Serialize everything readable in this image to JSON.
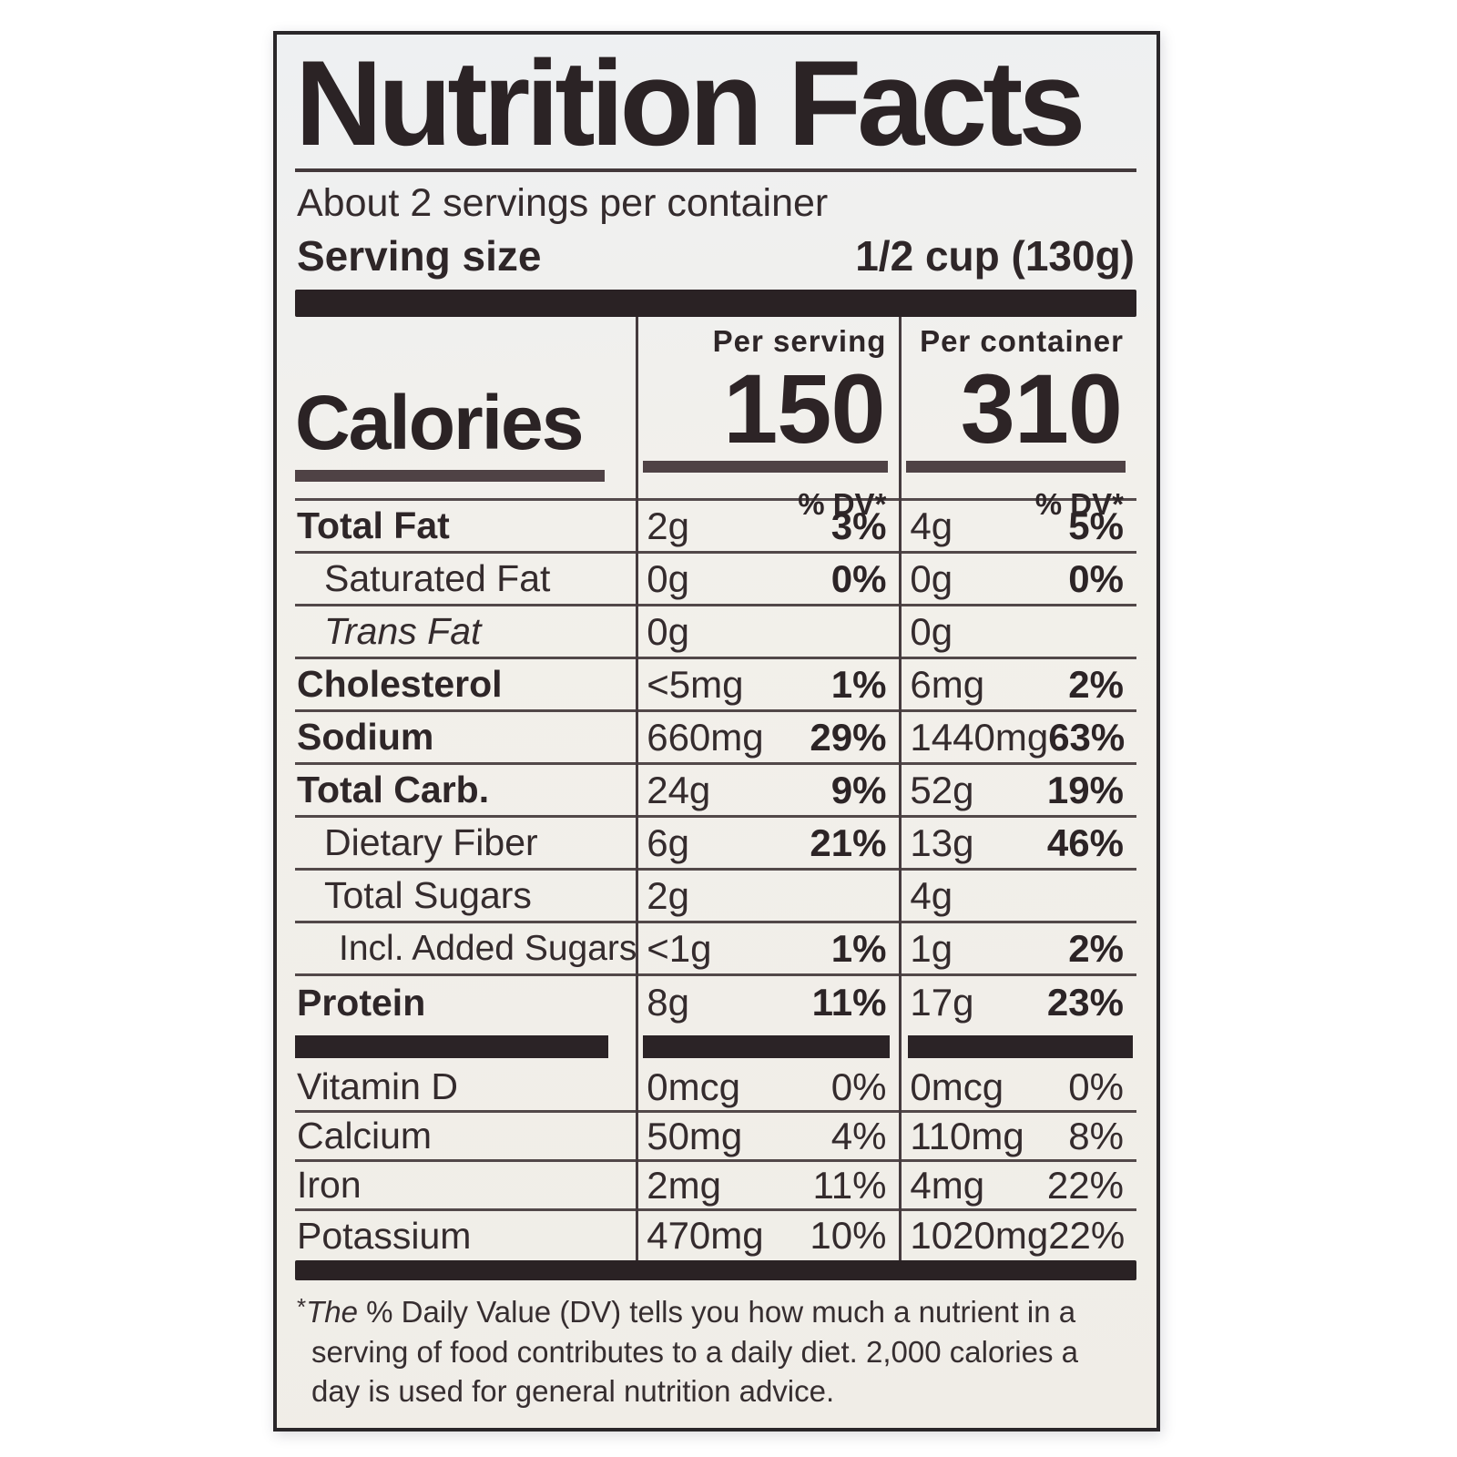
{
  "label": {
    "title": "Nutrition Facts",
    "servings_per_container": "About 2 servings per container",
    "serving_size_label": "Serving size",
    "serving_size_value": "1/2 cup (130g)",
    "calories": {
      "word": "Calories",
      "per_serving_header": "Per serving",
      "per_container_header": "Per container",
      "per_serving_value": "150",
      "per_container_value": "310",
      "dv_header_serving": "% DV*",
      "dv_header_container": "% DV*"
    },
    "nutrients": [
      {
        "name": "Total Fat",
        "per_serving": {
          "amount": "2g",
          "dv": "3%"
        },
        "per_container": {
          "amount": "4g",
          "dv": "5%"
        }
      },
      {
        "name": "Saturated Fat",
        "per_serving": {
          "amount": "0g",
          "dv": "0%"
        },
        "per_container": {
          "amount": "0g",
          "dv": "0%"
        }
      },
      {
        "name": "Trans Fat",
        "per_serving": {
          "amount": "0g",
          "dv": ""
        },
        "per_container": {
          "amount": "0g",
          "dv": ""
        }
      },
      {
        "name": "Cholesterol",
        "per_serving": {
          "amount": "<5mg",
          "dv": "1%"
        },
        "per_container": {
          "amount": "6mg",
          "dv": "2%"
        }
      },
      {
        "name": "Sodium",
        "per_serving": {
          "amount": "660mg",
          "dv": "29%"
        },
        "per_container": {
          "amount": "1440mg",
          "dv": "63%"
        }
      },
      {
        "name": "Total Carb.",
        "per_serving": {
          "amount": "24g",
          "dv": "9%"
        },
        "per_container": {
          "amount": "52g",
          "dv": "19%"
        }
      },
      {
        "name": "Dietary Fiber",
        "per_serving": {
          "amount": "6g",
          "dv": "21%"
        },
        "per_container": {
          "amount": "13g",
          "dv": "46%"
        }
      },
      {
        "name": "Total Sugars",
        "per_serving": {
          "amount": "2g",
          "dv": ""
        },
        "per_container": {
          "amount": "4g",
          "dv": ""
        }
      },
      {
        "name": "Incl. Added Sugars",
        "per_serving": {
          "amount": "<1g",
          "dv": "1%"
        },
        "per_container": {
          "amount": "1g",
          "dv": "2%"
        }
      },
      {
        "name": "Protein",
        "per_serving": {
          "amount": "8g",
          "dv": "11%"
        },
        "per_container": {
          "amount": "17g",
          "dv": "23%"
        }
      }
    ],
    "micronutrients": [
      {
        "name": "Vitamin D",
        "per_serving": {
          "amount": "0mcg",
          "dv": "0%"
        },
        "per_container": {
          "amount": "0mcg",
          "dv": "0%"
        }
      },
      {
        "name": "Calcium",
        "per_serving": {
          "amount": "50mg",
          "dv": "4%"
        },
        "per_container": {
          "amount": "110mg",
          "dv": "8%"
        }
      },
      {
        "name": "Iron",
        "per_serving": {
          "amount": "2mg",
          "dv": "11%"
        },
        "per_container": {
          "amount": "4mg",
          "dv": "22%"
        }
      },
      {
        "name": "Potassium",
        "per_serving": {
          "amount": "470mg",
          "dv": "10%"
        },
        "per_container": {
          "amount": "1020mg",
          "dv": "22%"
        }
      }
    ],
    "footnote": {
      "marker": "*",
      "lead_italic": "The",
      "body": " % Daily Value (DV) tells you how much a nutrient in a serving of food contributes to a daily diet. 2,000 calories a day is used for general nutrition advice."
    },
    "colors": {
      "text": "#342b2d",
      "heavy_text": "#2b2325",
      "thick_bar": "#2a2224",
      "hairline": "#524849",
      "background": "#f1efea"
    }
  }
}
